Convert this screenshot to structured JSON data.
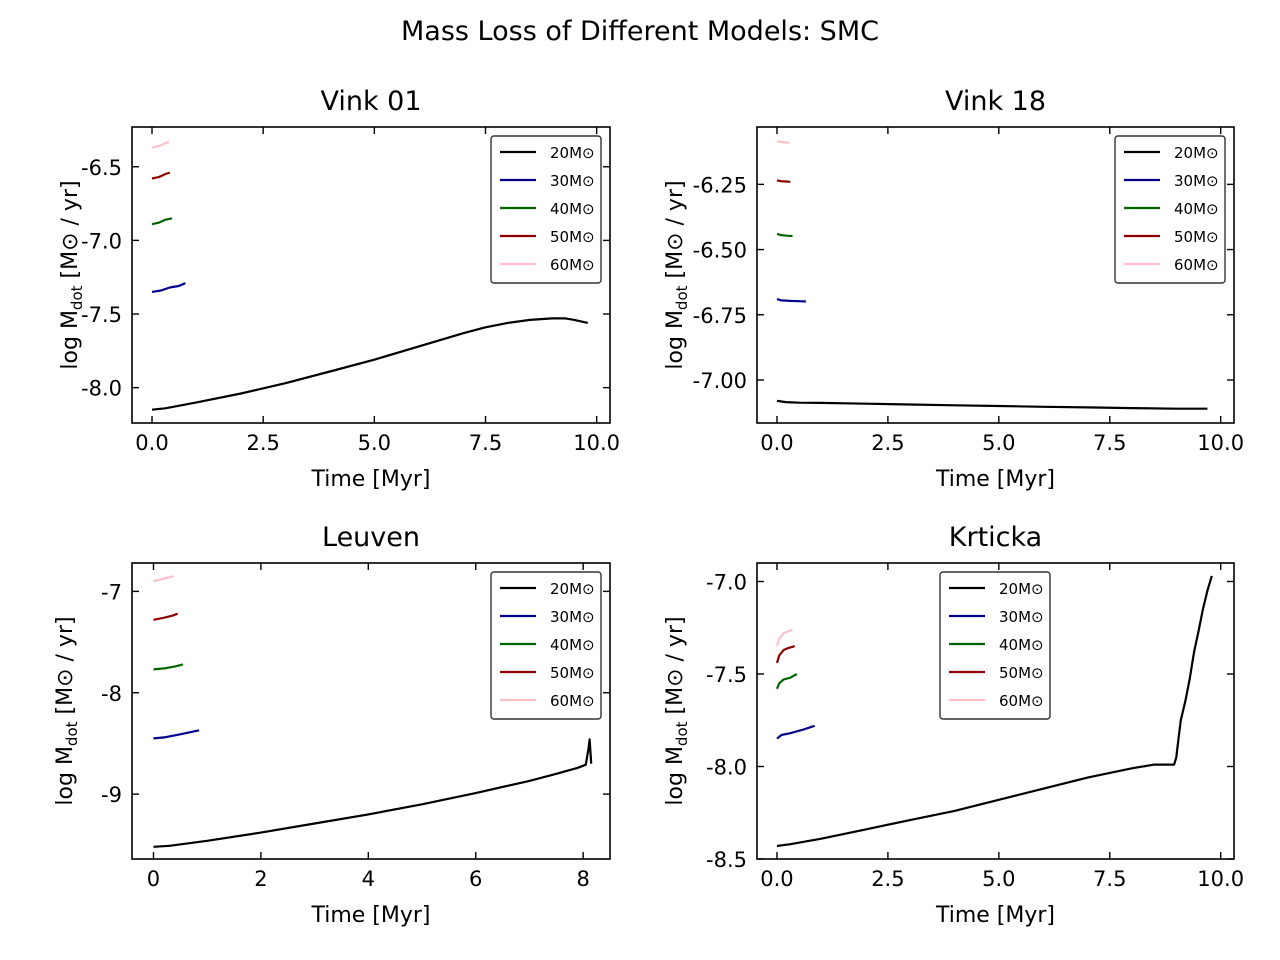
{
  "figure": {
    "title": "Mass Loss of Different Models: SMC",
    "legend_bg": "#ffffff",
    "legend_edge": "#333333"
  },
  "chart_data": [
    {
      "type": "line",
      "title": "Vink 01",
      "xlabel": "Time [Myr]",
      "ylabel": "log Mdot [M⊙ / yr]",
      "xlim": [
        -0.45,
        10.3
      ],
      "ylim": [
        -8.24,
        -6.23
      ],
      "xticks": [
        0,
        2.5,
        5,
        7.5,
        10
      ],
      "xticklabels": [
        "0.0",
        "2.5",
        "5.0",
        "7.5",
        "10.0"
      ],
      "yticks": [
        -8.0,
        -7.5,
        -7.0,
        -6.5
      ],
      "yticklabels": [
        "-8.0",
        "-7.5",
        "-7.0",
        "-6.5"
      ],
      "legend": "top-right",
      "series": [
        {
          "name": "20M⊙",
          "color": "#000000",
          "x": [
            0.0,
            0.3,
            1.0,
            2.0,
            3.0,
            4.0,
            5.0,
            6.0,
            7.0,
            7.5,
            8.0,
            8.5,
            9.0,
            9.3,
            9.5,
            9.8
          ],
          "y": [
            -8.15,
            -8.14,
            -8.1,
            -8.04,
            -7.97,
            -7.89,
            -7.81,
            -7.72,
            -7.63,
            -7.59,
            -7.56,
            -7.54,
            -7.53,
            -7.53,
            -7.54,
            -7.56
          ]
        },
        {
          "name": "30M⊙",
          "color": "#00008b",
          "x": [
            0.0,
            0.2,
            0.4,
            0.6,
            0.75
          ],
          "y": [
            -7.35,
            -7.34,
            -7.32,
            -7.31,
            -7.29
          ]
        },
        {
          "name": "40M⊙",
          "color": "#006400",
          "x": [
            0.0,
            0.15,
            0.3,
            0.45
          ],
          "y": [
            -6.89,
            -6.88,
            -6.86,
            -6.85
          ]
        },
        {
          "name": "50M⊙",
          "color": "#8b0000",
          "x": [
            0.0,
            0.15,
            0.3,
            0.4
          ],
          "y": [
            -6.58,
            -6.57,
            -6.55,
            -6.54
          ]
        },
        {
          "name": "60M⊙",
          "color": "#ffc0cb",
          "x": [
            0.0,
            0.15,
            0.3,
            0.38
          ],
          "y": [
            -6.37,
            -6.36,
            -6.34,
            -6.33
          ]
        }
      ]
    },
    {
      "type": "line",
      "title": "Vink 18",
      "xlabel": "Time [Myr]",
      "ylabel": "log Mdot [M⊙ / yr]",
      "xlim": [
        -0.45,
        10.3
      ],
      "ylim": [
        -7.165,
        -6.03
      ],
      "xticks": [
        0,
        2.5,
        5,
        7.5,
        10
      ],
      "xticklabels": [
        "0.0",
        "2.5",
        "5.0",
        "7.5",
        "10.0"
      ],
      "yticks": [
        -7.0,
        -6.75,
        -6.5,
        -6.25
      ],
      "yticklabels": [
        "-7.00",
        "-6.75",
        "-6.50",
        "-6.25"
      ],
      "legend": "top-right",
      "series": [
        {
          "name": "20M⊙",
          "color": "#000000",
          "x": [
            0.0,
            0.2,
            0.5,
            1.0,
            2.0,
            3.0,
            4.0,
            5.0,
            6.0,
            7.0,
            8.0,
            9.0,
            9.7
          ],
          "y": [
            -7.08,
            -7.085,
            -7.087,
            -7.088,
            -7.091,
            -7.094,
            -7.097,
            -7.1,
            -7.103,
            -7.105,
            -7.108,
            -7.11,
            -7.11
          ]
        },
        {
          "name": "30M⊙",
          "color": "#00008b",
          "x": [
            0.0,
            0.1,
            0.3,
            0.5,
            0.65
          ],
          "y": [
            -6.69,
            -6.695,
            -6.697,
            -6.698,
            -6.699
          ]
        },
        {
          "name": "40M⊙",
          "color": "#006400",
          "x": [
            0.0,
            0.1,
            0.25,
            0.35
          ],
          "y": [
            -6.44,
            -6.445,
            -6.447,
            -6.448
          ]
        },
        {
          "name": "50M⊙",
          "color": "#8b0000",
          "x": [
            0.0,
            0.1,
            0.2,
            0.3
          ],
          "y": [
            -6.235,
            -6.238,
            -6.239,
            -6.24
          ]
        },
        {
          "name": "60M⊙",
          "color": "#ffc0cb",
          "x": [
            0.0,
            0.1,
            0.2,
            0.28
          ],
          "y": [
            -6.085,
            -6.088,
            -6.089,
            -6.09
          ]
        }
      ]
    },
    {
      "type": "line",
      "title": "Leuven",
      "xlabel": "Time [Myr]",
      "ylabel": "log Mdot [M⊙ / yr]",
      "xlim": [
        -0.4,
        8.5
      ],
      "ylim": [
        -9.64,
        -6.72
      ],
      "xticks": [
        0,
        2,
        4,
        6,
        8
      ],
      "xticklabels": [
        "0",
        "2",
        "4",
        "6",
        "8"
      ],
      "yticks": [
        -9,
        -8,
        -7
      ],
      "yticklabels": [
        "-9",
        "-8",
        "-7"
      ],
      "legend": "top-right",
      "series": [
        {
          "name": "20M⊙",
          "color": "#000000",
          "x": [
            0.0,
            0.3,
            1.0,
            2.0,
            3.0,
            4.0,
            5.0,
            6.0,
            7.0,
            7.5,
            7.9,
            8.05,
            8.1,
            8.12,
            8.14,
            8.15
          ],
          "y": [
            -9.52,
            -9.51,
            -9.46,
            -9.38,
            -9.29,
            -9.2,
            -9.1,
            -8.99,
            -8.87,
            -8.8,
            -8.74,
            -8.71,
            -8.55,
            -8.46,
            -8.62,
            -8.7
          ]
        },
        {
          "name": "30M⊙",
          "color": "#00008b",
          "x": [
            0.0,
            0.2,
            0.5,
            0.85
          ],
          "y": [
            -8.45,
            -8.44,
            -8.41,
            -8.37
          ]
        },
        {
          "name": "40M⊙",
          "color": "#006400",
          "x": [
            0.0,
            0.2,
            0.4,
            0.55
          ],
          "y": [
            -7.77,
            -7.76,
            -7.74,
            -7.72
          ]
        },
        {
          "name": "50M⊙",
          "color": "#8b0000",
          "x": [
            0.0,
            0.2,
            0.35,
            0.45
          ],
          "y": [
            -7.28,
            -7.26,
            -7.24,
            -7.22
          ]
        },
        {
          "name": "60M⊙",
          "color": "#ffc0cb",
          "x": [
            0.0,
            0.15,
            0.3,
            0.38
          ],
          "y": [
            -6.9,
            -6.88,
            -6.86,
            -6.85
          ]
        }
      ]
    },
    {
      "type": "line",
      "title": "Krticka",
      "xlabel": "Time [Myr]",
      "ylabel": "log Mdot [M⊙ / yr]",
      "xlim": [
        -0.45,
        10.3
      ],
      "ylim": [
        -8.5,
        -6.9
      ],
      "xticks": [
        0,
        2.5,
        5,
        7.5,
        10
      ],
      "xticklabels": [
        "0.0",
        "2.5",
        "5.0",
        "7.5",
        "10.0"
      ],
      "yticks": [
        -8.5,
        -8.0,
        -7.5,
        -7.0
      ],
      "yticklabels": [
        "-8.5",
        "-8.0",
        "-7.5",
        "-7.0"
      ],
      "legend": "upper-center",
      "series": [
        {
          "name": "20M⊙",
          "color": "#000000",
          "x": [
            0.0,
            0.3,
            1.0,
            2.0,
            3.0,
            4.0,
            5.0,
            6.0,
            7.0,
            8.0,
            8.5,
            8.9,
            8.95,
            9.0,
            9.05,
            9.1,
            9.2,
            9.3,
            9.4,
            9.5,
            9.6,
            9.7,
            9.8
          ],
          "y": [
            -8.43,
            -8.42,
            -8.39,
            -8.34,
            -8.29,
            -8.24,
            -8.18,
            -8.12,
            -8.06,
            -8.01,
            -7.99,
            -7.99,
            -7.99,
            -7.95,
            -7.85,
            -7.75,
            -7.65,
            -7.53,
            -7.38,
            -7.27,
            -7.15,
            -7.05,
            -6.97
          ]
        },
        {
          "name": "30M⊙",
          "color": "#00008b",
          "x": [
            0.0,
            0.1,
            0.3,
            0.6,
            0.85
          ],
          "y": [
            -7.85,
            -7.83,
            -7.82,
            -7.8,
            -7.78
          ]
        },
        {
          "name": "40M⊙",
          "color": "#006400",
          "x": [
            0.0,
            0.05,
            0.15,
            0.3,
            0.45
          ],
          "y": [
            -7.58,
            -7.55,
            -7.53,
            -7.52,
            -7.5
          ]
        },
        {
          "name": "50M⊙",
          "color": "#8b0000",
          "x": [
            0.0,
            0.05,
            0.15,
            0.25,
            0.4
          ],
          "y": [
            -7.44,
            -7.4,
            -7.37,
            -7.36,
            -7.35
          ]
        },
        {
          "name": "60M⊙",
          "color": "#ffc0cb",
          "x": [
            0.0,
            0.05,
            0.15,
            0.25,
            0.35
          ],
          "y": [
            -7.35,
            -7.31,
            -7.28,
            -7.27,
            -7.26
          ]
        }
      ]
    }
  ]
}
